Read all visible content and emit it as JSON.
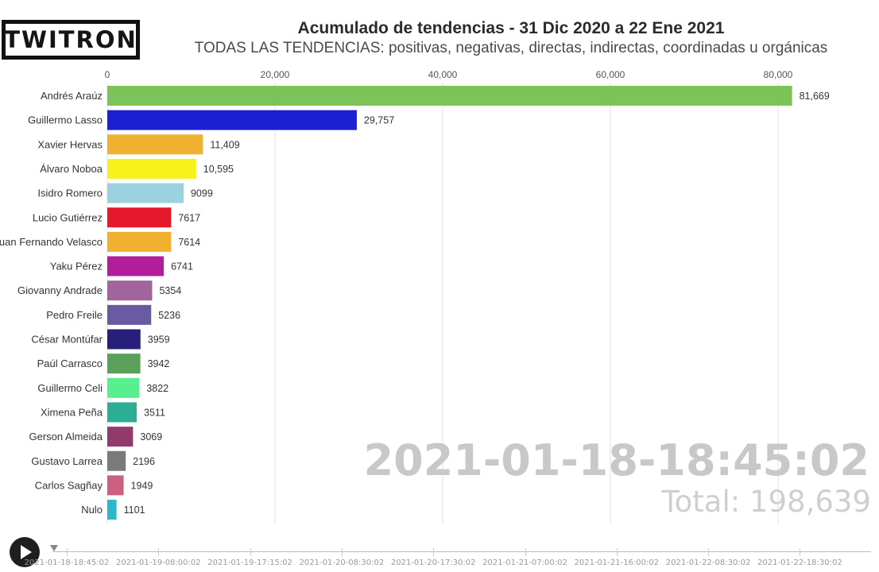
{
  "brand": {
    "logo_text": "TWITRON"
  },
  "chart_data": {
    "type": "bar",
    "orientation": "horizontal",
    "title": "Acumulado de tendencias - 31 Dic 2020 a 22 Ene 2021",
    "subtitle": "TODAS LAS TENDENCIAS: positivas, negativas, directas, indirectas, coordinadas u orgánicas",
    "x_ticks": [
      0,
      20000,
      40000,
      60000,
      80000
    ],
    "x_tick_labels": [
      "0",
      "20,000",
      "40,000",
      "60,000",
      "80,000"
    ],
    "xlim": [
      0,
      85000
    ],
    "grid": true,
    "categories": [
      "Andrés Araúz",
      "Guillermo Lasso",
      "Xavier Hervas",
      "Álvaro Noboa",
      "Isidro Romero",
      "Lucio Gutiérrez",
      "Juan Fernando Velasco",
      "Yaku Pérez",
      "Giovanny Andrade",
      "Pedro Freile",
      "César Montúfar",
      "Paúl Carrasco",
      "Guillermo Celi",
      "Ximena Peña",
      "Gerson Almeida",
      "Gustavo Larrea",
      "Carlos Sagñay",
      "Nulo"
    ],
    "values": [
      81669,
      29757,
      11409,
      10595,
      9099,
      7617,
      7614,
      6741,
      5354,
      5236,
      3959,
      3942,
      3822,
      3511,
      3069,
      2196,
      1949,
      1101
    ],
    "value_labels": [
      "81,669",
      "29,757",
      "11,409",
      "10,595",
      "9099",
      "7617",
      "7614",
      "6741",
      "5354",
      "5236",
      "3959",
      "3942",
      "3822",
      "3511",
      "3069",
      "2196",
      "1949",
      "1101"
    ],
    "colors": [
      "#7cc35a",
      "#1c1fd2",
      "#f0b030",
      "#f7f21c",
      "#9ad3df",
      "#e5182c",
      "#f0b030",
      "#b21d9c",
      "#a2649c",
      "#6a5aa2",
      "#27207a",
      "#5aa05a",
      "#58f08e",
      "#2cae94",
      "#923a6e",
      "#7a7a7a",
      "#cc6080",
      "#2cb8c8"
    ]
  },
  "overlay": {
    "timestamp": "2021-01-18-18:45:02",
    "total": "Total: 198,639"
  },
  "player": {
    "play_icon": "play-icon",
    "timeline_labels": [
      "2021-01-18-18:45:02",
      "2021-01-19-08:00:02",
      "2021-01-19-17:15:02",
      "2021-01-20-08:30:02",
      "2021-01-20-17:30:02",
      "2021-01-21-07:00:02",
      "2021-01-21-16:00:02",
      "2021-01-22-08:30:02",
      "2021-01-22-18:30:02"
    ]
  }
}
